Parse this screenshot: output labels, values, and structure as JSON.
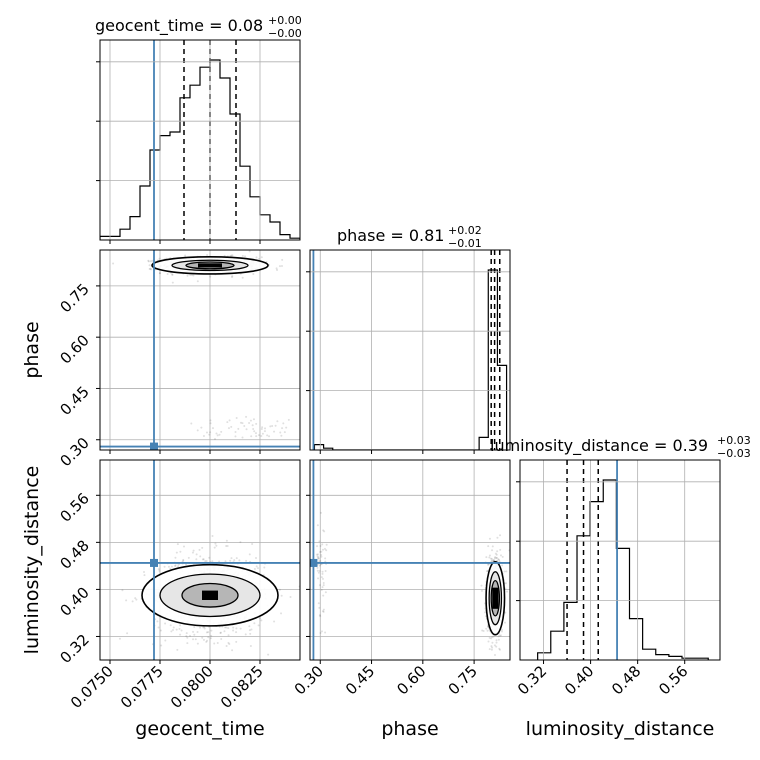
{
  "chart_data": {
    "type": "scatter",
    "subtype": "corner-plot",
    "parameters": [
      "geocent_time",
      "phase",
      "luminosity_distance"
    ],
    "truth_color": "#4682b4",
    "hist_color": "#000000",
    "truths": {
      "geocent_time": 0.0772,
      "phase": 0.28,
      "luminosity_distance": 0.445
    },
    "panels": {
      "geocent_time": {
        "title_main": "geocent_time = 0.08",
        "title_sup": "+0.00",
        "title_sub": "−0.00",
        "xlim": [
          0.0745,
          0.0845
        ],
        "ticks": [
          0.075,
          0.0775,
          0.08,
          0.0825
        ],
        "tick_labels": [
          "0.0750",
          "0.0775",
          "0.0800",
          "0.0825"
        ],
        "quantiles": [
          0.0787,
          0.08,
          0.0813
        ],
        "hist_values": [
          0.02,
          0.02,
          0.06,
          0.13,
          0.3,
          0.5,
          0.58,
          0.6,
          0.79,
          0.86,
          0.96,
          1.0,
          0.9,
          0.7,
          0.41,
          0.24,
          0.14,
          0.1,
          0.03,
          0.01
        ]
      },
      "phase": {
        "title_main": "phase = 0.81",
        "title_sup": "+0.02",
        "title_sub": "−0.01",
        "xlim": [
          0.27,
          0.855
        ],
        "ticks": [
          0.3,
          0.45,
          0.6,
          0.75
        ],
        "tick_labels": [
          "0.30",
          "0.45",
          "0.60",
          "0.75"
        ],
        "quantiles": [
          0.8,
          0.81,
          0.825
        ],
        "hist_values": [
          0.03,
          0.01,
          0,
          0,
          0,
          0,
          0,
          0,
          0,
          0,
          0,
          0,
          0,
          0,
          0,
          0,
          0,
          0,
          0.07,
          1.0,
          0.47
        ]
      },
      "luminosity_distance": {
        "title_main": "luminosity_distance = 0.39",
        "title_sup": "+0.03",
        "title_sub": "−0.03",
        "xlim": [
          0.28,
          0.62
        ],
        "ticks": [
          0.32,
          0.4,
          0.48,
          0.56
        ],
        "tick_labels": [
          "0.32",
          "0.40",
          "0.48",
          "0.56"
        ],
        "quantiles": [
          0.36,
          0.388,
          0.413
        ],
        "hist_values": [
          0.04,
          0.16,
          0.32,
          0.69,
          0.88,
          1.0,
          0.62,
          0.23,
          0.06,
          0.03,
          0.02,
          0.01,
          0.01
        ]
      }
    },
    "y_ticks": {
      "phase": {
        "ticks": [
          0.3,
          0.45,
          0.6,
          0.75
        ],
        "tick_labels": [
          "0.30",
          "0.45",
          "0.60",
          "0.75"
        ],
        "ylim": [
          0.27,
          0.855
        ]
      },
      "luminosity_distance": {
        "ticks": [
          0.32,
          0.4,
          0.48,
          0.56
        ],
        "tick_labels": [
          "0.32",
          "0.40",
          "0.48",
          "0.56"
        ],
        "ylim": [
          0.28,
          0.62
        ]
      }
    },
    "axis_labels": {
      "geocent_time": "geocent_time",
      "phase": "phase",
      "luminosity_distance": "luminosity_distance"
    },
    "grid": true
  }
}
